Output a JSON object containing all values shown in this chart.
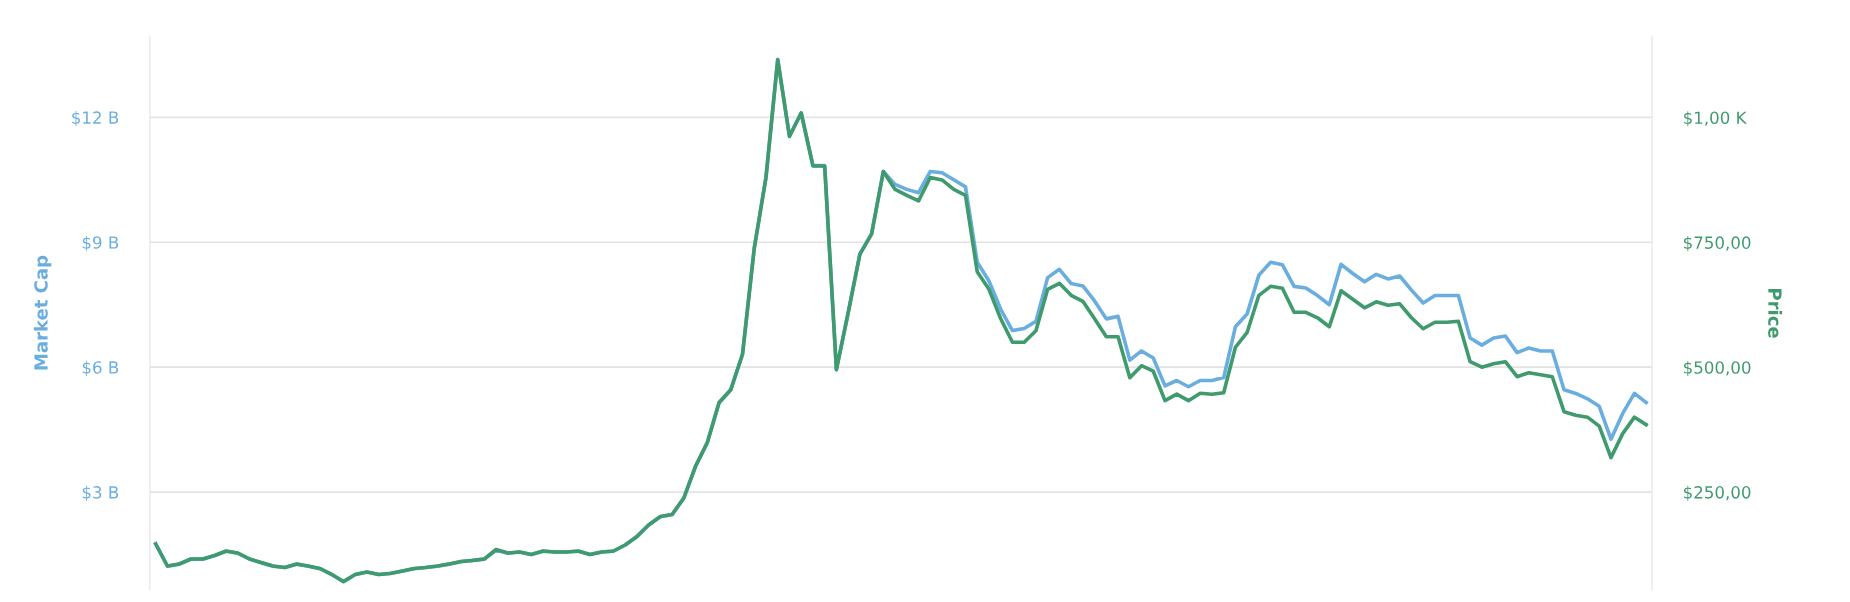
{
  "chart_data": {
    "type": "line",
    "ylabel": "Market Cap",
    "y2label": "Price",
    "categories": [
      null,
      null,
      null,
      null,
      null,
      null,
      null,
      null,
      null,
      null,
      null,
      null,
      null,
      null,
      null,
      null,
      null,
      null,
      null,
      null,
      null,
      null,
      null,
      null,
      null,
      null,
      null,
      null,
      null,
      null,
      null,
      null,
      null,
      null,
      null,
      null,
      null,
      null,
      null,
      null,
      null,
      null,
      null,
      null,
      null,
      null,
      null,
      null,
      null,
      null,
      null,
      null,
      null,
      null,
      null,
      null,
      null,
      null,
      null,
      null,
      null,
      null,
      null,
      null,
      null,
      null,
      null,
      null,
      null,
      null,
      null,
      null,
      null,
      null,
      null,
      null,
      null,
      null,
      null,
      null,
      null,
      null,
      null,
      null,
      null,
      null,
      null,
      null,
      null,
      null,
      null,
      null,
      null,
      null,
      null,
      null,
      null,
      null,
      null,
      null,
      null,
      null,
      null,
      null,
      null,
      null,
      null,
      null,
      null,
      null,
      null,
      null,
      null,
      null,
      null,
      null,
      null,
      null,
      null,
      null,
      null,
      null,
      null,
      null,
      null,
      null,
      null,
      null
    ],
    "series": [
      {
        "color": "#6aaee0",
        "axis": "y",
        "values": [
          1.76,
          1.22,
          1.27,
          1.39,
          1.39,
          1.47,
          1.58,
          1.53,
          1.39,
          1.3,
          1.22,
          1.19,
          1.27,
          1.22,
          1.16,
          1.02,
          0.85,
          1.02,
          1.08,
          1.02,
          1.05,
          1.1,
          1.16,
          1.19,
          1.22,
          1.27,
          1.33,
          1.36,
          1.39,
          1.61,
          1.53,
          1.56,
          1.5,
          1.58,
          1.56,
          1.56,
          1.58,
          1.5,
          1.56,
          1.58,
          1.73,
          1.93,
          2.21,
          2.41,
          2.46,
          2.86,
          3.62,
          4.19,
          5.15,
          5.46,
          6.31,
          8.86,
          10.56,
          13.39,
          11.55,
          12.11,
          10.84,
          10.84,
          5.94,
          7.3,
          8.72,
          9.2,
          10.7,
          10.39,
          10.27,
          10.19,
          10.7,
          10.67,
          10.5,
          10.33,
          8.52,
          8.07,
          7.39,
          6.88,
          6.93,
          7.1,
          8.15,
          8.35,
          8.01,
          7.95,
          7.59,
          7.16,
          7.22,
          6.17,
          6.39,
          6.22,
          5.55,
          5.68,
          5.53,
          5.68,
          5.68,
          5.75,
          6.97,
          7.28,
          8.21,
          8.52,
          8.46,
          7.94,
          7.9,
          7.72,
          7.5,
          8.47,
          8.25,
          8.05,
          8.23,
          8.12,
          8.19,
          7.85,
          7.54,
          7.72,
          7.72,
          7.72,
          6.7,
          6.53,
          6.7,
          6.75,
          6.35,
          6.46,
          6.39,
          6.39,
          5.46,
          5.37,
          5.24,
          5.06,
          4.27,
          4.89,
          5.37,
          5.15
        ]
      },
      {
        "color": "#3f9a6e",
        "axis": "y2",
        "values": [
          146,
          102,
          106,
          116,
          116,
          123,
          132,
          128,
          116,
          109,
          102,
          99,
          106,
          102,
          97,
          85,
          71,
          85,
          90,
          85,
          87,
          92,
          97,
          99,
          102,
          106,
          111,
          113,
          116,
          135,
          128,
          130,
          125,
          132,
          130,
          130,
          132,
          125,
          130,
          132,
          144,
          161,
          184,
          201,
          205,
          238,
          302,
          349,
          429,
          455,
          526,
          738,
          880,
          1116,
          962,
          1009,
          903,
          903,
          495,
          609,
          726,
          767,
          892,
          856,
          844,
          833,
          880,
          875,
          856,
          844,
          691,
          656,
          597,
          550,
          550,
          573,
          656,
          668,
          644,
          632,
          597,
          561,
          561,
          479,
          503,
          492,
          433,
          446,
          433,
          448,
          446,
          449,
          540,
          570,
          644,
          662,
          658,
          610,
          610,
          599,
          581,
          653,
          636,
          619,
          631,
          624,
          627,
          599,
          577,
          590,
          590,
          592,
          511,
          500,
          507,
          511,
          481,
          489,
          485,
          481,
          411,
          404,
          400,
          382,
          319,
          367,
          400,
          385
        ]
      }
    ],
    "ylim": [
      0.65,
      13.95
    ],
    "yticks": [
      {
        "value": 3,
        "label": "$3 B"
      },
      {
        "value": 6,
        "label": "$6 B"
      },
      {
        "value": 9,
        "label": "$9 B"
      },
      {
        "value": 12,
        "label": "$12 B"
      }
    ],
    "y2lim": [
      54,
      1163
    ],
    "y2ticks": [
      {
        "value": 250,
        "label": "$250,00"
      },
      {
        "value": 500,
        "label": "$500,00"
      },
      {
        "value": 750,
        "label": "$750,00"
      },
      {
        "value": 1000,
        "label": "$1,00 K"
      }
    ],
    "grid": "y"
  }
}
